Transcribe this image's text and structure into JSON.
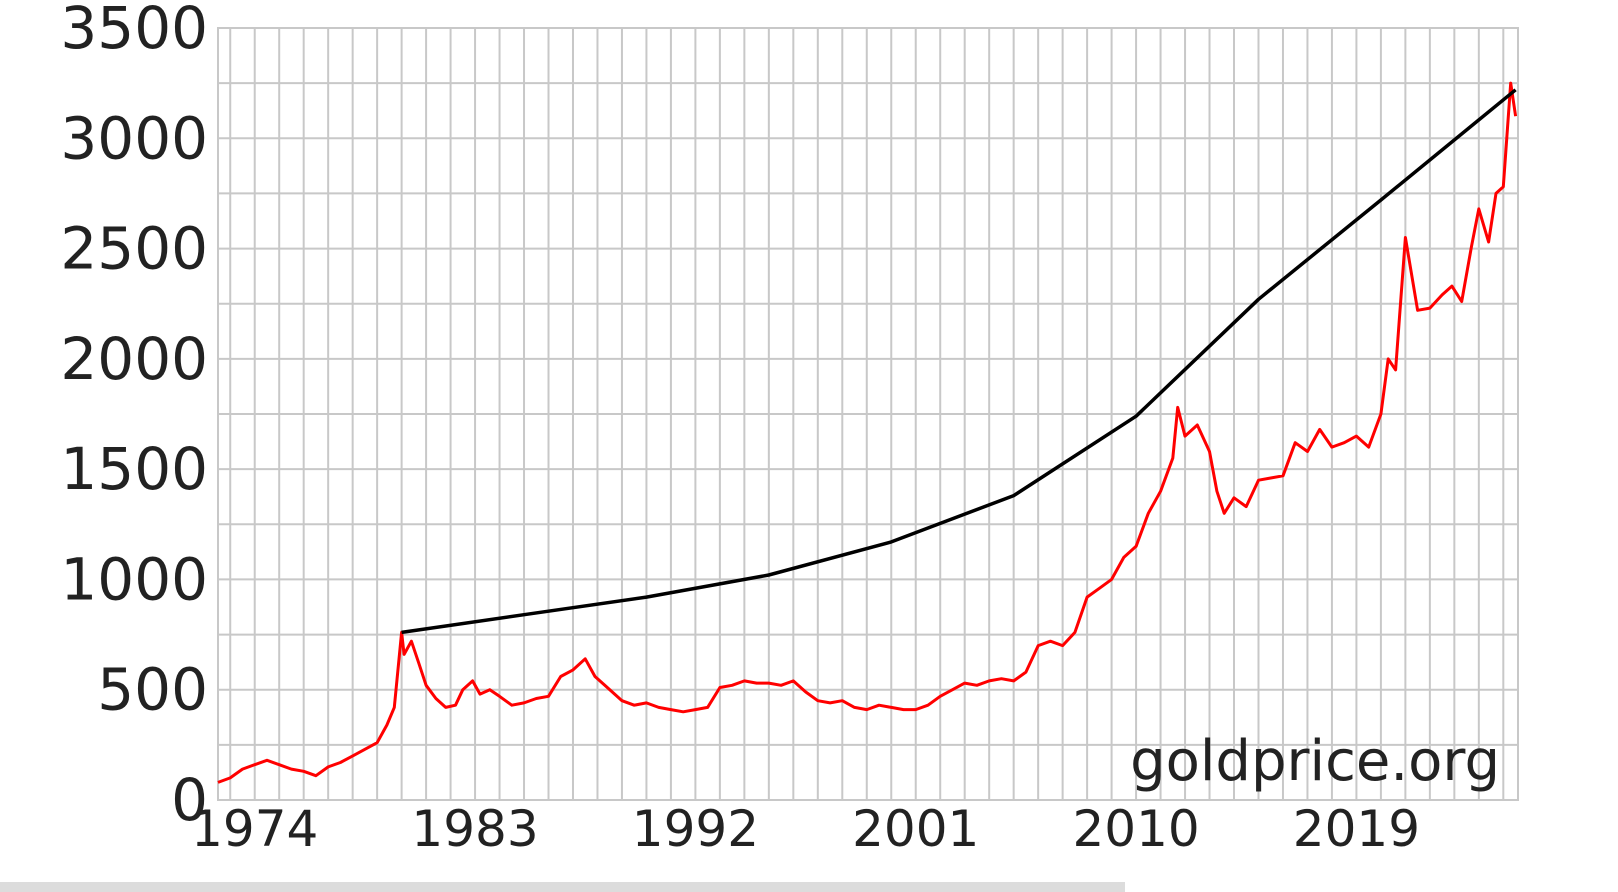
{
  "chart_data": {
    "type": "line",
    "title": "",
    "xlabel": "",
    "ylabel": "",
    "xlim": [
      1972.5,
      2025.6
    ],
    "ylim": [
      0,
      3500
    ],
    "y_ticks": [
      0,
      500,
      1000,
      1500,
      2000,
      2500,
      3000,
      3500
    ],
    "x_ticks": [
      1974,
      1983,
      1992,
      2001,
      2010,
      2019
    ],
    "grid": true,
    "watermark": "goldprice.org",
    "colors": {
      "price": "#ff0000",
      "trend": "#000000",
      "grid": "#c8c8c8"
    },
    "series": [
      {
        "key": "price",
        "x": [
          1972.5,
          1973.0,
          1973.5,
          1974.0,
          1974.5,
          1975.0,
          1975.5,
          1976.0,
          1976.5,
          1977.0,
          1977.5,
          1978.0,
          1978.5,
          1979.0,
          1979.4,
          1979.7,
          1980.0,
          1980.1,
          1980.4,
          1980.7,
          1981.0,
          1981.4,
          1981.8,
          1982.2,
          1982.5,
          1982.9,
          1983.2,
          1983.6,
          1984.0,
          1984.5,
          1985.0,
          1985.5,
          1986.0,
          1986.5,
          1987.0,
          1987.5,
          1987.9,
          1988.3,
          1989.0,
          1989.5,
          1990.0,
          1990.5,
          1991.0,
          1991.5,
          1992.0,
          1992.5,
          1993.0,
          1993.5,
          1994.0,
          1994.5,
          1995.0,
          1995.5,
          1996.0,
          1996.5,
          1997.0,
          1997.5,
          1998.0,
          1998.5,
          1999.0,
          1999.5,
          2000.0,
          2000.5,
          2001.0,
          2001.5,
          2002.0,
          2002.5,
          2003.0,
          2003.5,
          2004.0,
          2004.5,
          2005.0,
          2005.5,
          2006.0,
          2006.5,
          2007.0,
          2007.5,
          2008.0,
          2008.5,
          2009.0,
          2009.5,
          2010.0,
          2010.5,
          2011.0,
          2011.5,
          2011.7,
          2012.0,
          2012.5,
          2013.0,
          2013.3,
          2013.6,
          2014.0,
          2014.5,
          2015.0,
          2015.5,
          2016.0,
          2016.5,
          2017.0,
          2017.5,
          2018.0,
          2018.5,
          2019.0,
          2019.5,
          2020.0,
          2020.3,
          2020.6,
          2021.0,
          2021.5,
          2022.0,
          2022.5,
          2022.9,
          2023.3,
          2023.7,
          2024.0,
          2024.4,
          2024.7,
          2025.0,
          2025.3,
          2025.5
        ],
        "y": [
          80,
          100,
          140,
          160,
          180,
          160,
          140,
          130,
          110,
          150,
          170,
          200,
          230,
          260,
          340,
          420,
          760,
          660,
          720,
          620,
          520,
          460,
          420,
          430,
          500,
          540,
          480,
          500,
          470,
          430,
          440,
          460,
          470,
          560,
          590,
          640,
          560,
          520,
          450,
          430,
          440,
          420,
          410,
          400,
          410,
          420,
          510,
          520,
          540,
          530,
          530,
          520,
          540,
          490,
          450,
          440,
          450,
          420,
          410,
          430,
          420,
          410,
          410,
          430,
          470,
          500,
          530,
          520,
          540,
          550,
          540,
          580,
          700,
          720,
          700,
          760,
          920,
          960,
          1000,
          1100,
          1150,
          1300,
          1400,
          1550,
          1780,
          1650,
          1700,
          1580,
          1400,
          1300,
          1370,
          1330,
          1450,
          1460,
          1470,
          1620,
          1580,
          1680,
          1600,
          1620,
          1650,
          1600,
          1750,
          2000,
          1950,
          2550,
          2220,
          2230,
          2290,
          2330,
          2260,
          2510,
          2680,
          2530,
          2750,
          2780,
          3250,
          3100
        ]
      },
      {
        "key": "trend",
        "x": [
          1980.0,
          1985.0,
          1990.0,
          1995.0,
          2000.0,
          2005.0,
          2010.0,
          2015.0,
          2020.0,
          2025.5
        ],
        "y": [
          760,
          840,
          920,
          1020,
          1170,
          1380,
          1740,
          2270,
          2720,
          3220
        ]
      }
    ]
  }
}
